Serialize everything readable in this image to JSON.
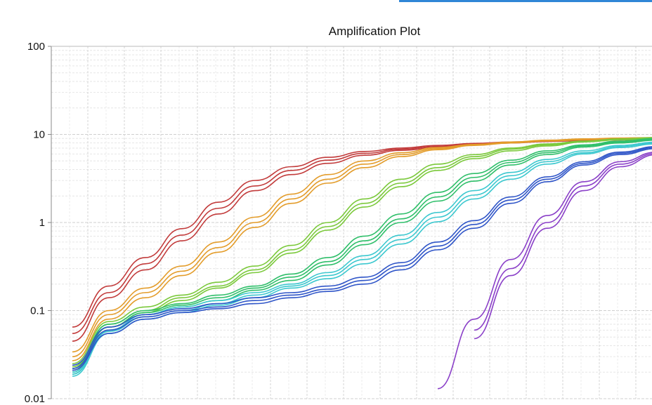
{
  "chart_data": {
    "type": "line",
    "title": "Amplification Plot",
    "xlabel": "",
    "ylabel": "",
    "y_scale": "log",
    "ylim": [
      0.01,
      100
    ],
    "y_ticks": [
      "100",
      "10",
      "1",
      "0.1",
      "0.01"
    ],
    "grid": true,
    "legend": "none",
    "series_groups": [
      {
        "color": "#c23b3b",
        "series": [
          {
            "values": [
              0.065,
              0.19,
              0.4,
              0.85,
              1.7,
              3.0,
              4.3,
              5.5,
              6.4,
              7.0,
              7.5,
              7.9,
              8.2,
              8.5,
              8.7,
              8.85,
              8.95,
              9.0
            ]
          },
          {
            "values": [
              0.055,
              0.16,
              0.34,
              0.72,
              1.45,
              2.6,
              3.9,
              5.1,
              6.1,
              6.8,
              7.3,
              7.8,
              8.1,
              8.4,
              8.6,
              8.75,
              8.85,
              8.9
            ]
          },
          {
            "values": [
              0.045,
              0.14,
              0.29,
              0.62,
              1.25,
              2.3,
              3.5,
              4.7,
              5.8,
              6.6,
              7.1,
              7.6,
              8.0,
              8.3,
              8.5,
              8.65,
              8.75,
              8.8
            ]
          }
        ]
      },
      {
        "color": "#e39c2a",
        "series": [
          {
            "values": [
              0.034,
              0.1,
              0.18,
              0.32,
              0.6,
              1.15,
              2.1,
              3.5,
              5.0,
              6.2,
              7.1,
              7.7,
              8.2,
              8.6,
              8.9,
              9.1,
              9.2,
              9.25
            ]
          },
          {
            "values": [
              0.03,
              0.09,
              0.16,
              0.28,
              0.52,
              1.0,
              1.85,
              3.1,
              4.6,
              5.9,
              6.9,
              7.6,
              8.1,
              8.5,
              8.8,
              9.0,
              9.1,
              9.15
            ]
          },
          {
            "values": [
              0.027,
              0.08,
              0.14,
              0.25,
              0.46,
              0.88,
              1.65,
              2.8,
              4.2,
              5.6,
              6.7,
              7.5,
              8.0,
              8.4,
              8.7,
              8.9,
              9.0,
              9.05
            ]
          }
        ]
      },
      {
        "color": "#7bc93b",
        "series": [
          {
            "values": [
              0.025,
              0.075,
              0.11,
              0.15,
              0.21,
              0.32,
              0.55,
              1.0,
              1.85,
              3.1,
              4.6,
              5.9,
              7.0,
              7.8,
              8.4,
              8.9,
              9.2,
              9.35
            ]
          },
          {
            "values": [
              0.023,
              0.07,
              0.1,
              0.14,
              0.19,
              0.29,
              0.49,
              0.9,
              1.65,
              2.8,
              4.2,
              5.6,
              6.8,
              7.6,
              8.3,
              8.8,
              9.1,
              9.25
            ]
          },
          {
            "values": [
              0.021,
              0.065,
              0.095,
              0.13,
              0.18,
              0.27,
              0.45,
              0.82,
              1.5,
              2.55,
              3.9,
              5.3,
              6.5,
              7.4,
              8.2,
              8.7,
              9.0,
              9.15
            ]
          }
        ]
      },
      {
        "color": "#2fbf6a",
        "series": [
          {
            "values": [
              0.022,
              0.07,
              0.1,
              0.12,
              0.15,
              0.19,
              0.26,
              0.4,
              0.7,
              1.25,
              2.2,
              3.6,
              5.1,
              6.5,
              7.6,
              8.4,
              9.0,
              9.3
            ]
          },
          {
            "values": [
              0.02,
              0.065,
              0.095,
              0.115,
              0.14,
              0.18,
              0.24,
              0.36,
              0.62,
              1.1,
              1.95,
              3.25,
              4.8,
              6.2,
              7.4,
              8.2,
              8.8,
              9.15
            ]
          },
          {
            "values": [
              0.019,
              0.06,
              0.09,
              0.11,
              0.13,
              0.17,
              0.22,
              0.33,
              0.56,
              1.0,
              1.75,
              2.95,
              4.5,
              5.9,
              7.2,
              8.0,
              8.6,
              9.0
            ]
          }
        ]
      },
      {
        "color": "#3cc8cf",
        "series": [
          {
            "values": [
              0.02,
              0.06,
              0.09,
              0.11,
              0.13,
              0.16,
              0.2,
              0.27,
              0.42,
              0.72,
              1.3,
              2.3,
              3.7,
              5.2,
              6.5,
              7.5,
              8.2,
              8.6
            ]
          },
          {
            "values": [
              0.019,
              0.058,
              0.085,
              0.1,
              0.12,
              0.15,
              0.19,
              0.25,
              0.38,
              0.64,
              1.15,
              2.05,
              3.4,
              4.9,
              6.2,
              7.3,
              8.0,
              8.4
            ]
          },
          {
            "values": [
              0.018,
              0.055,
              0.08,
              0.095,
              0.115,
              0.14,
              0.18,
              0.23,
              0.34,
              0.57,
              1.02,
              1.85,
              3.1,
              4.6,
              6.0,
              7.1,
              7.8,
              8.2
            ]
          }
        ]
      },
      {
        "color": "#2f55c8",
        "series": [
          {
            "values": [
              0.024,
              0.065,
              0.09,
              0.105,
              0.12,
              0.14,
              0.16,
              0.19,
              0.24,
              0.35,
              0.6,
              1.05,
              1.95,
              3.3,
              4.9,
              6.3,
              7.3,
              7.9
            ]
          },
          {
            "values": [
              0.022,
              0.06,
              0.085,
              0.1,
              0.11,
              0.13,
              0.15,
              0.175,
              0.22,
              0.32,
              0.54,
              0.95,
              1.8,
              3.1,
              4.7,
              6.1,
              7.1,
              7.7
            ]
          },
          {
            "values": [
              0.021,
              0.055,
              0.08,
              0.095,
              0.105,
              0.12,
              0.14,
              0.165,
              0.2,
              0.29,
              0.49,
              0.86,
              1.65,
              2.9,
              4.5,
              5.9,
              6.9,
              7.5
            ]
          }
        ]
      },
      {
        "color": "#8a3fc8",
        "series": [
          {
            "values": [
              null,
              null,
              null,
              null,
              null,
              null,
              null,
              null,
              null,
              null,
              0.013,
              0.08,
              0.38,
              1.2,
              2.9,
              4.9,
              6.3,
              7.0
            ]
          },
          {
            "values": [
              null,
              null,
              null,
              null,
              null,
              null,
              null,
              null,
              null,
              null,
              null,
              0.06,
              0.3,
              1.0,
              2.6,
              4.6,
              6.1,
              6.9
            ]
          },
          {
            "values": [
              null,
              null,
              null,
              null,
              null,
              null,
              null,
              null,
              null,
              null,
              null,
              0.048,
              0.25,
              0.86,
              2.3,
              4.3,
              5.9,
              6.8
            ]
          }
        ]
      }
    ]
  }
}
